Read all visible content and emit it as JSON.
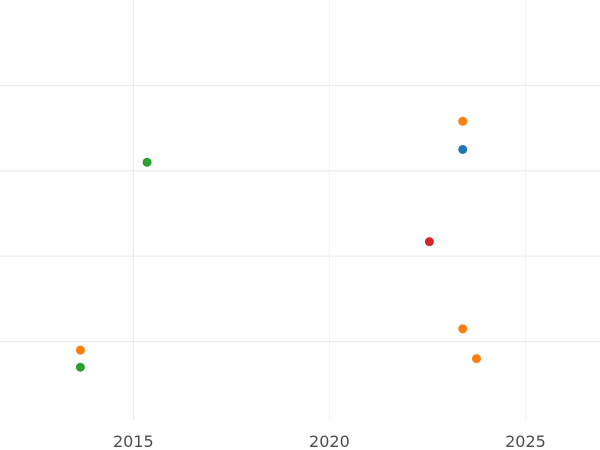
{
  "chart_data": {
    "type": "scatter",
    "title": "",
    "xlabel": "",
    "ylabel": "",
    "xlim": [
      2011.6,
      2026.9
    ],
    "ylim": [
      0,
      5
    ],
    "x_ticks": [
      2015,
      2020,
      2025
    ],
    "x_tick_labels": [
      "2015",
      "2020",
      "2025"
    ],
    "y_gridlines": [
      1,
      2,
      3,
      4
    ],
    "grid": true,
    "legend": "none",
    "points": [
      {
        "x": 2015.35,
        "y": 3.1,
        "color": "#2ca02c"
      },
      {
        "x": 2023.4,
        "y": 3.58,
        "color": "#ff7f0e"
      },
      {
        "x": 2023.4,
        "y": 3.25,
        "color": "#1f77b4"
      },
      {
        "x": 2022.55,
        "y": 2.17,
        "color": "#d62728"
      },
      {
        "x": 2023.4,
        "y": 1.15,
        "color": "#ff7f0e"
      },
      {
        "x": 2023.75,
        "y": 0.8,
        "color": "#ff7f0e"
      },
      {
        "x": 2013.65,
        "y": 0.9,
        "color": "#ff7f0e"
      },
      {
        "x": 2013.65,
        "y": 0.7,
        "color": "#2ca02c"
      }
    ]
  }
}
